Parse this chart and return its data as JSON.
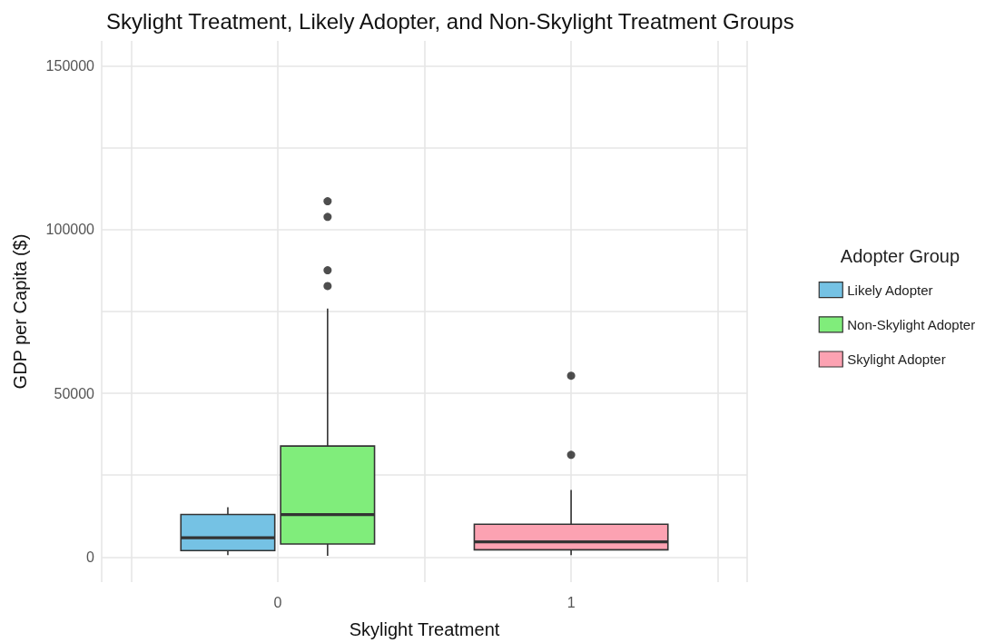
{
  "chart_data": {
    "type": "box",
    "title": "Skylight Treatment, Likely Adopter, and Non-Skylight Treatment Groups",
    "xlabel": "Skylight Treatment",
    "ylabel": "GDP per Capita ($)",
    "legend_title": "Adopter Group",
    "legend": "right",
    "grid": true,
    "categories": [
      "0",
      "1"
    ],
    "ylim": [
      -7700,
      157700
    ],
    "yticks": [
      0,
      {
        "value": 25000,
        "label": null
      },
      50000,
      {
        "value": 75000,
        "label": null
      },
      100000,
      {
        "value": 125000,
        "label": null
      },
      150000
    ],
    "series": [
      {
        "name": "Likely Adopter",
        "color": "#75c2e4",
        "boxes": [
          {
            "low": 550,
            "q1": 1930,
            "median": 5870,
            "q3": 12960,
            "high": 15170
          },
          null
        ]
      },
      {
        "name": "Non-Skylight Adopter",
        "color": "#80ed7b",
        "boxes": [
          {
            "low": 360,
            "q1": 3950,
            "median": 12960,
            "q3": 33900,
            "high": 75900,
            "outliers": [
              108700,
              103900,
              87600,
              82800
            ]
          },
          null
        ]
      },
      {
        "name": "Skylight Adopter",
        "color": "#fca2b2",
        "boxes": [
          null,
          {
            "low": 550,
            "q1": 2200,
            "median": 4600,
            "q3": 10000,
            "high": 20500,
            "outliers": [
              55400,
              31200
            ]
          }
        ]
      }
    ]
  }
}
